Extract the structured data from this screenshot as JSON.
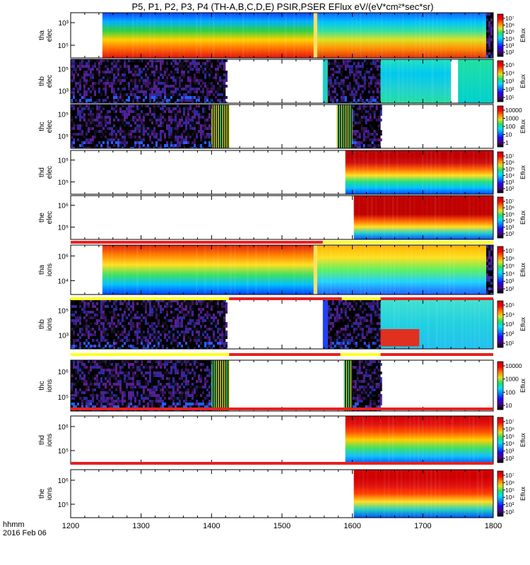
{
  "title": "P5, P1, P2, P3, P4 (TH-A,B,C,D,E) PSIR,PSER EFlux eV/(eV*cm²*sec*sr)",
  "footer": {
    "line1": "hhmm",
    "line2": "2016 Feb 06"
  },
  "chart_data": {
    "type": "heatmap",
    "x_axis": {
      "range": [
        1200,
        1800
      ],
      "ticks": [
        1200,
        1300,
        1400,
        1500,
        1600,
        1700,
        1800
      ]
    },
    "colorbar_label": "Eflux",
    "panels": [
      {
        "id": "tha-elec",
        "ylabel_top": "tha",
        "ylabel_bottom": "elec",
        "yticks": [
          "10³",
          "10⁵"
        ],
        "cbar_ticks": [
          "10⁷",
          "10⁶",
          "10⁵",
          "10⁴",
          "10³",
          "10²"
        ],
        "regions": [
          {
            "style": "gradient",
            "stops": [
              "#e01010",
              "#ff6a00",
              "#ffd000",
              "#30d040",
              "#00b0ff",
              "#1040ff"
            ],
            "x": [
              1245,
              1545
            ]
          },
          {
            "style": "solid",
            "color": "#ffe060",
            "x": [
              1545,
              1550
            ]
          },
          {
            "style": "gradient",
            "stops": [
              "#e03010",
              "#ff8c00",
              "#e0e020",
              "#30e0a0",
              "#00c0ff",
              "#1060ff"
            ],
            "x": [
              1550,
              1790
            ]
          },
          {
            "style": "noise",
            "color": "#101020",
            "x": [
              1790,
              1800
            ]
          }
        ]
      },
      {
        "id": "thb-elec",
        "ylabel_top": "thb",
        "ylabel_bottom": "elec",
        "yticks": [
          "10⁵",
          "10³"
        ],
        "cbar_ticks": [
          "10⁵",
          "10⁴",
          "10³",
          "10²",
          "10¹"
        ],
        "regions": [
          {
            "style": "noise",
            "color": "#3a1460",
            "x": [
              1200,
              1420
            ]
          },
          {
            "style": "solid",
            "color": "#20d0c0",
            "x": [
              1558,
              1565
            ]
          },
          {
            "style": "noise",
            "color": "#2a1050",
            "x": [
              1565,
              1640
            ]
          },
          {
            "style": "gradient",
            "stops": [
              "#20e0a0",
              "#20d0d0",
              "#00c8f0",
              "#20e0c0"
            ],
            "x": [
              1640,
              1740
            ]
          },
          {
            "style": "gradient",
            "stops": [
              "#00d0d0",
              "#20e0a0"
            ],
            "x": [
              1750,
              1800
            ]
          }
        ]
      },
      {
        "id": "thc-elec",
        "ylabel_top": "thc",
        "ylabel_bottom": "elec",
        "yticks": [
          "10⁵",
          "10⁵"
        ],
        "cbar_ticks": [
          "10000",
          "1000",
          "100",
          "10",
          "1"
        ],
        "regions": [
          {
            "style": "noise",
            "color": "#2a1050",
            "x": [
              1200,
              1400
            ]
          },
          {
            "style": "stripes",
            "color": "#40f080",
            "x": [
              1400,
              1425
            ]
          },
          {
            "style": "stripes",
            "color": "#40f080",
            "x": [
              1578,
              1600
            ]
          },
          {
            "style": "noise",
            "color": "#201040",
            "x": [
              1600,
              1640
            ]
          }
        ]
      },
      {
        "id": "thd-elec",
        "ylabel_top": "thd",
        "ylabel_bottom": "elec",
        "yticks": [
          "10⁵",
          "10⁵"
        ],
        "cbar_ticks": [
          "10⁷",
          "10⁶",
          "10⁵",
          "10⁴",
          "10³",
          "10²"
        ],
        "regions": [
          {
            "style": "gradient",
            "stops": [
              "#0040ff",
              "#00c0ff",
              "#20e080",
              "#ffe020",
              "#ff6a00",
              "#d01010",
              "#c00000",
              "#c00000"
            ],
            "x": [
              1590,
              1800
            ]
          }
        ]
      },
      {
        "id": "the-elec",
        "ylabel_top": "the",
        "ylabel_bottom": "elec",
        "yticks": [
          "10⁶",
          "10⁵"
        ],
        "cbar_ticks": [
          "10⁷",
          "10⁶",
          "10⁵",
          "10⁴",
          "10³",
          "10²"
        ],
        "regions": [
          {
            "style": "gradient",
            "stops": [
              "#0050ff",
              "#20d0d0",
              "#ffe020",
              "#ff6000",
              "#c00000",
              "#c00000",
              "#c00000",
              "#c00000"
            ],
            "x": [
              1602,
              1800
            ]
          }
        ]
      },
      {
        "id": "tha-ions",
        "ylabel_top": "tha",
        "ylabel_bottom": "ions",
        "yticks": [
          "10⁶",
          "10⁴"
        ],
        "cbar_ticks": [
          "10⁷",
          "10⁶",
          "10⁵",
          "10⁴",
          "10³",
          "10²"
        ],
        "regions": [
          {
            "style": "gradient",
            "stops": [
              "#0040ff",
              "#00c0ff",
              "#40e060",
              "#ffe020",
              "#ff8000",
              "#e02010"
            ],
            "x": [
              1245,
              1545
            ],
            "invert": true
          },
          {
            "style": "solid",
            "color": "#ffe060",
            "x": [
              1545,
              1550
            ]
          },
          {
            "style": "gradient",
            "stops": [
              "#2060ff",
              "#20d0ff",
              "#60f060",
              "#ffe020",
              "#ffb000"
            ],
            "x": [
              1550,
              1790
            ],
            "invert": true
          },
          {
            "style": "noise",
            "color": "#101020",
            "x": [
              1790,
              1800
            ]
          }
        ]
      },
      {
        "id": "thb-ions",
        "ylabel_top": "thb",
        "ylabel_bottom": "ions",
        "yticks": [
          "10⁵",
          "10³"
        ],
        "cbar_ticks": [
          "10⁵",
          "10⁴",
          "10³",
          "10²",
          "10¹"
        ],
        "regions": [
          {
            "style": "noise",
            "color": "#3a1460",
            "x": [
              1200,
              1420
            ]
          },
          {
            "style": "solid",
            "color": "#2040ff",
            "x": [
              1558,
              1565
            ]
          },
          {
            "style": "noise",
            "color": "#2a1050",
            "x": [
              1565,
              1640
            ]
          },
          {
            "style": "gradient",
            "stops": [
              "#20c0f0",
              "#20d0e0",
              "#40e0d0"
            ],
            "x": [
              1640,
              1800
            ]
          },
          {
            "style": "solid",
            "color": "#e03020",
            "x": [
              1640,
              1695
            ],
            "yband": [
              0.6,
              0.95
            ]
          }
        ]
      },
      {
        "id": "thc-ions",
        "ylabel_top": "thc",
        "ylabel_bottom": "ions",
        "yticks": [
          "10⁶",
          "10⁵"
        ],
        "cbar_ticks": [
          "10000",
          "1000",
          "100",
          "10"
        ],
        "regions": [
          {
            "style": "noise",
            "color": "#3a1460",
            "x": [
              1200,
              1400
            ]
          },
          {
            "style": "stripes",
            "color": "#40f080",
            "x": [
              1400,
              1425
            ]
          },
          {
            "style": "stripes",
            "color": "#40f080",
            "x": [
              1588,
              1600
            ]
          },
          {
            "style": "noise",
            "color": "#2a1050",
            "x": [
              1600,
              1640
            ]
          }
        ]
      },
      {
        "id": "thd-ions",
        "ylabel_top": "thd",
        "ylabel_bottom": "ions",
        "yticks": [
          "10⁶",
          "10⁵"
        ],
        "cbar_ticks": [
          "10⁷",
          "10⁶",
          "10⁵",
          "10⁴",
          "10³",
          "10²"
        ],
        "regions": [
          {
            "style": "gradient",
            "stops": [
              "#0050ff",
              "#10c0ff",
              "#40e060",
              "#ffd000",
              "#ff5000",
              "#e01010",
              "#d00000"
            ],
            "x": [
              1590,
              1800
            ]
          }
        ]
      },
      {
        "id": "the-ions",
        "ylabel_top": "the",
        "ylabel_bottom": "ions",
        "yticks": [
          "10⁶",
          "10⁵"
        ],
        "cbar_ticks": [
          "10⁷",
          "10⁶",
          "10⁵",
          "10⁴",
          "10³",
          "10²"
        ],
        "regions": [
          {
            "style": "gradient",
            "stops": [
              "#0050ff",
              "#20d0c0",
              "#ffe020",
              "#ff4000",
              "#e01010",
              "#d00000",
              "#d00000"
            ],
            "x": [
              1602,
              1800
            ]
          }
        ]
      }
    ],
    "mode_bars": [
      {
        "after_panel": "the-elec",
        "segments": [
          {
            "color": "#e82020",
            "x": [
              1200,
              1558
            ]
          },
          {
            "color": "#ffff20",
            "x": [
              1558,
              1800
            ]
          }
        ]
      },
      {
        "after_panel": "tha-ions",
        "segments": [
          {
            "color": "#ffff20",
            "x": [
              1200,
              1425
            ]
          },
          {
            "color": "#e82020",
            "x": [
              1425,
              1585
            ]
          },
          {
            "color": "#ffff20",
            "x": [
              1585,
              1640
            ]
          },
          {
            "color": "#e82020",
            "x": [
              1640,
              1800
            ]
          }
        ]
      },
      {
        "after_panel": "thb-ions",
        "segments": [
          {
            "color": "#ffff20",
            "x": [
              1200,
              1425
            ]
          },
          {
            "color": "#e82020",
            "x": [
              1425,
              1583
            ]
          },
          {
            "color": "#ffff20",
            "x": [
              1583,
              1640
            ]
          },
          {
            "color": "#e82020",
            "x": [
              1640,
              1800
            ]
          }
        ]
      },
      {
        "after_panel": "thc-ions",
        "segments": [
          {
            "color": "#e82020",
            "x": [
              1200,
              1800
            ]
          }
        ]
      },
      {
        "after_panel": "thd-ions",
        "segments": [
          {
            "color": "#e82020",
            "x": [
              1200,
              1800
            ]
          }
        ]
      }
    ]
  }
}
